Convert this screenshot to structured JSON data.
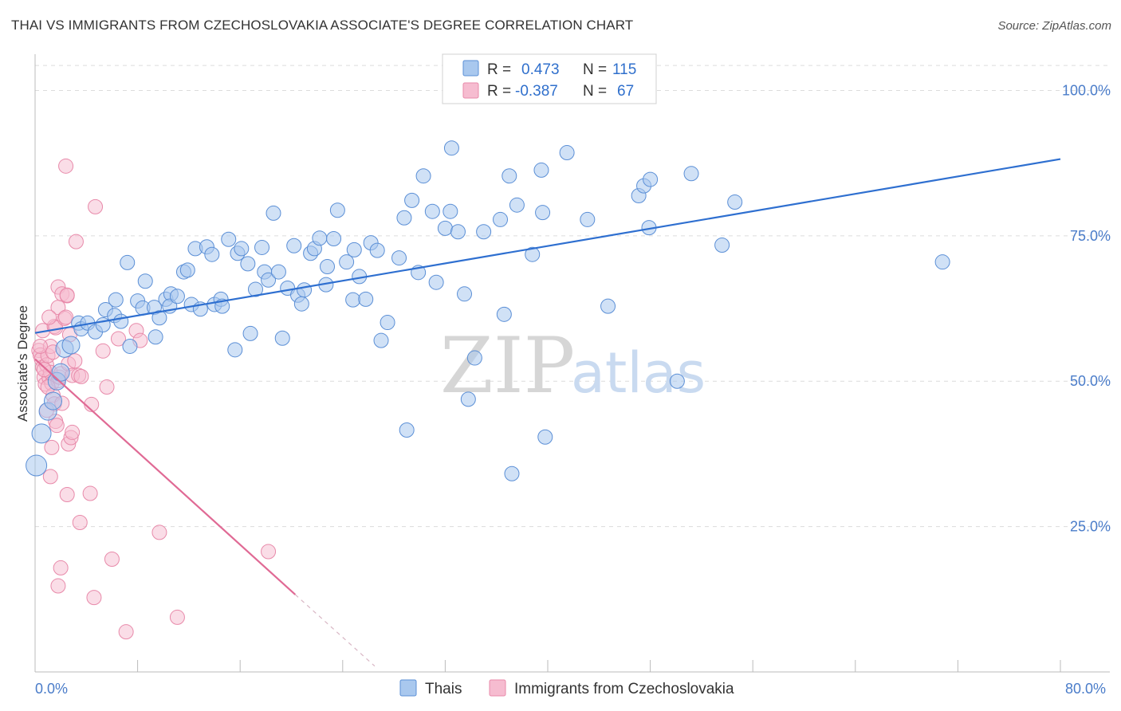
{
  "title": "THAI VS IMMIGRANTS FROM CZECHOSLOVAKIA ASSOCIATE'S DEGREE CORRELATION CHART",
  "source": "Source: ZipAtlas.com",
  "watermark": {
    "zip": "ZIP",
    "atlas": "atlas"
  },
  "legend": {
    "rows": [
      {
        "r_label": "R =",
        "r_value": "0.473",
        "n_label": "N =",
        "n_value": "115"
      },
      {
        "r_label": "R =",
        "r_value": "-0.387",
        "n_label": "N =",
        "n_value": "67"
      }
    ]
  },
  "bottom_legend": {
    "thai": "Thais",
    "czech": "Immigrants from Czechoslovakia"
  },
  "colors": {
    "thai_fill": "#a9c8ee",
    "thai_stroke": "#5b8fd6",
    "thai_line": "#2e6fd0",
    "czech_fill": "#f6bcd0",
    "czech_stroke": "#e88aaa",
    "czech_line": "#e06a95",
    "grid": "#dcdcdc",
    "tick_text": "#4a7cc9"
  },
  "chart_data": {
    "type": "scatter",
    "xlabel": "",
    "ylabel": "Associate's Degree",
    "xlim": [
      0,
      80
    ],
    "ylim": [
      0,
      105
    ],
    "x_tick_labels": [
      "0.0%",
      "80.0%"
    ],
    "y_ticks": [
      {
        "value": 100,
        "label": "100.0%"
      },
      {
        "value": 75,
        "label": "75.0%"
      },
      {
        "value": 50,
        "label": "50.0%"
      },
      {
        "value": 25,
        "label": "25.0%"
      }
    ],
    "grid": true,
    "series": [
      {
        "name": "Thais",
        "trend": {
          "x": [
            0,
            80
          ],
          "y": [
            58.3,
            88.2
          ]
        },
        "points": [
          [
            0.1,
            35.5
          ],
          [
            0.5,
            41
          ],
          [
            1.0,
            44.8
          ],
          [
            1.4,
            46.6
          ],
          [
            1.7,
            50
          ],
          [
            2.0,
            51.5
          ],
          [
            2.3,
            55.6
          ],
          [
            2.8,
            56.2
          ],
          [
            3.4,
            60
          ],
          [
            3.6,
            59
          ],
          [
            4.1,
            60
          ],
          [
            4.7,
            58.5
          ],
          [
            5.3,
            59.7
          ],
          [
            5.5,
            62.3
          ],
          [
            6.2,
            61.3
          ],
          [
            6.7,
            60.3
          ],
          [
            6.3,
            64
          ],
          [
            7.4,
            56
          ],
          [
            7.2,
            70.4
          ],
          [
            8.0,
            63.8
          ],
          [
            8.6,
            67.2
          ],
          [
            8.4,
            62.6
          ],
          [
            9.3,
            62.7
          ],
          [
            9.7,
            60.9
          ],
          [
            9.4,
            57.6
          ],
          [
            10.2,
            64.1
          ],
          [
            10.6,
            65
          ],
          [
            10.5,
            62.9
          ],
          [
            11.1,
            64.6
          ],
          [
            11.6,
            68.8
          ],
          [
            11.9,
            69.1
          ],
          [
            12.2,
            63.2
          ],
          [
            12.5,
            72.8
          ],
          [
            12.9,
            62.4
          ],
          [
            13.4,
            73.1
          ],
          [
            13.8,
            71.8
          ],
          [
            14.0,
            63.2
          ],
          [
            14.5,
            64.1
          ],
          [
            14.6,
            62.9
          ],
          [
            15.1,
            74.4
          ],
          [
            15.6,
            55.4
          ],
          [
            15.8,
            72
          ],
          [
            16.1,
            72.8
          ],
          [
            16.6,
            70.2
          ],
          [
            16.8,
            58.2
          ],
          [
            17.2,
            65.8
          ],
          [
            17.7,
            73
          ],
          [
            17.9,
            68.8
          ],
          [
            18.2,
            67.4
          ],
          [
            18.6,
            78.9
          ],
          [
            19.0,
            68.8
          ],
          [
            19.3,
            57.4
          ],
          [
            19.7,
            66
          ],
          [
            20.2,
            73.3
          ],
          [
            20.5,
            64.8
          ],
          [
            20.8,
            63.3
          ],
          [
            21.0,
            65.7
          ],
          [
            21.5,
            72
          ],
          [
            21.8,
            72.8
          ],
          [
            22.2,
            74.6
          ],
          [
            22.7,
            66.6
          ],
          [
            22.8,
            69.7
          ],
          [
            23.3,
            74.5
          ],
          [
            23.6,
            79.4
          ],
          [
            24.3,
            70.5
          ],
          [
            24.8,
            64
          ],
          [
            24.9,
            72.6
          ],
          [
            25.3,
            68
          ],
          [
            25.8,
            64.1
          ],
          [
            26.2,
            73.8
          ],
          [
            26.7,
            72.5
          ],
          [
            27.0,
            57
          ],
          [
            27.5,
            60.1
          ],
          [
            28.4,
            71.2
          ],
          [
            28.8,
            78.1
          ],
          [
            29.0,
            41.6
          ],
          [
            29.4,
            81.1
          ],
          [
            29.9,
            68.7
          ],
          [
            30.3,
            85.3
          ],
          [
            31.0,
            79.2
          ],
          [
            31.3,
            67
          ],
          [
            32.0,
            76.3
          ],
          [
            32.4,
            79.2
          ],
          [
            32.5,
            90.1
          ],
          [
            33.0,
            75.7
          ],
          [
            33.5,
            65
          ],
          [
            33.8,
            46.9
          ],
          [
            34.3,
            54
          ],
          [
            35.0,
            75.7
          ],
          [
            36.3,
            77.8
          ],
          [
            36.6,
            61.5
          ],
          [
            37.0,
            85.3
          ],
          [
            37.2,
            34.1
          ],
          [
            37.6,
            80.3
          ],
          [
            38.8,
            71.8
          ],
          [
            39.5,
            86.3
          ],
          [
            39.6,
            79
          ],
          [
            39.8,
            40.4
          ],
          [
            41.5,
            89.3
          ],
          [
            43.1,
            77.8
          ],
          [
            44.7,
            62.9
          ],
          [
            47.1,
            81.9
          ],
          [
            47.5,
            83.6
          ],
          [
            47.9,
            76.4
          ],
          [
            48.0,
            84.7
          ],
          [
            50.1,
            50
          ],
          [
            51.2,
            85.7
          ],
          [
            53.6,
            73.4
          ],
          [
            54.6,
            80.8
          ],
          [
            70.8,
            70.5
          ]
        ],
        "point_sizes": [
          13,
          12,
          11,
          11,
          11,
          11,
          11,
          11,
          9,
          9,
          9,
          9,
          9,
          9,
          9,
          9,
          9,
          9,
          9,
          9,
          9,
          9,
          9,
          9,
          9,
          9,
          9,
          9,
          9,
          9,
          9,
          9,
          9,
          9,
          9,
          9,
          9,
          9,
          9,
          9,
          9,
          9,
          9,
          9,
          9,
          9,
          9,
          9,
          9,
          9,
          9,
          9,
          9,
          9,
          9,
          9,
          9,
          9,
          9,
          9,
          9,
          9,
          9,
          9,
          9,
          9,
          9,
          9,
          9,
          9,
          9,
          9,
          9,
          9,
          9,
          9,
          9,
          9,
          9,
          9,
          9,
          9,
          9,
          9,
          9,
          9,
          9,
          9,
          9,
          9,
          9,
          9,
          9,
          9,
          9,
          9,
          9,
          9,
          9,
          9,
          9,
          9,
          9,
          9,
          9,
          9,
          9,
          9,
          9,
          9,
          9
        ]
      },
      {
        "name": "Immigrants from Czechoslovakia",
        "trend": {
          "x": [
            0,
            20.3
          ],
          "y": [
            53.8,
            13.3
          ],
          "dashed_to": {
            "x": 26.5,
            "y": 1.0
          }
        },
        "points": [
          [
            0.3,
            55.3
          ],
          [
            0.4,
            54.5
          ],
          [
            0.5,
            53.8
          ],
          [
            0.6,
            52.4
          ],
          [
            0.7,
            50.7
          ],
          [
            0.8,
            49.5
          ],
          [
            0.9,
            52.8
          ],
          [
            1.0,
            54.4
          ],
          [
            1.1,
            50.6
          ],
          [
            1.2,
            51.5
          ],
          [
            1.3,
            49.6
          ],
          [
            1.4,
            47.6
          ],
          [
            1.5,
            46.1
          ],
          [
            1.6,
            43.1
          ],
          [
            1.7,
            42.4
          ],
          [
            1.8,
            50.1
          ],
          [
            1.9,
            50.7
          ],
          [
            2.0,
            51.3
          ],
          [
            2.1,
            46.2
          ],
          [
            0.6,
            58.7
          ],
          [
            1.2,
            56
          ],
          [
            1.5,
            59.4
          ],
          [
            1.6,
            59.2
          ],
          [
            1.8,
            66.2
          ],
          [
            1.8,
            62.7
          ],
          [
            2.1,
            65
          ],
          [
            2.3,
            60.8
          ],
          [
            2.5,
            64.7
          ],
          [
            2.5,
            64.8
          ],
          [
            2.4,
            61
          ],
          [
            2.7,
            58
          ],
          [
            2.6,
            53
          ],
          [
            2.9,
            51
          ],
          [
            3.1,
            53.5
          ],
          [
            3.4,
            51
          ],
          [
            3.6,
            50.8
          ],
          [
            1.3,
            38.6
          ],
          [
            1.2,
            33.6
          ],
          [
            2.6,
            39.2
          ],
          [
            2.8,
            40.3
          ],
          [
            2.9,
            41.2
          ],
          [
            2.5,
            30.5
          ],
          [
            3.5,
            25.7
          ],
          [
            4.3,
            30.7
          ],
          [
            5.3,
            55.2
          ],
          [
            5.6,
            49
          ],
          [
            6.5,
            57.3
          ],
          [
            7.9,
            58.7
          ],
          [
            8.2,
            57
          ],
          [
            4.4,
            46
          ],
          [
            2.4,
            87
          ],
          [
            4.7,
            80
          ],
          [
            3.2,
            74
          ],
          [
            2.0,
            17.9
          ],
          [
            1.8,
            14.8
          ],
          [
            4.6,
            12.8
          ],
          [
            6.0,
            19.4
          ],
          [
            7.1,
            6.9
          ],
          [
            9.7,
            24
          ],
          [
            11.1,
            9.4
          ],
          [
            18.2,
            20.7
          ],
          [
            0.4,
            56
          ],
          [
            0.7,
            52
          ],
          [
            1.0,
            49
          ],
          [
            1.4,
            55
          ],
          [
            0.9,
            45
          ],
          [
            1.1,
            61
          ]
        ]
      }
    ]
  }
}
